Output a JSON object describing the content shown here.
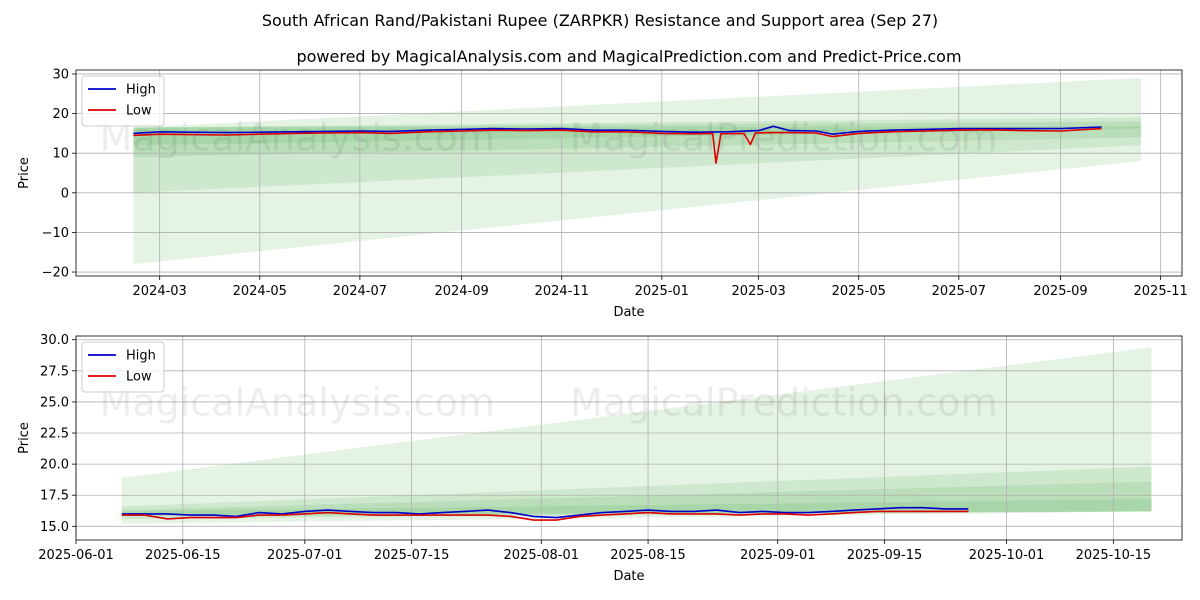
{
  "title": "South African Rand/Pakistani Rupee (ZARPKR) Resistance and Support area (Sep 27)",
  "subtitle": "powered by MagicalAnalysis.com and MagicalPrediction.com and Predict-Price.com",
  "watermarks": [
    "MagicalAnalysis.com",
    "MagicalPrediction.com"
  ],
  "colors": {
    "high": "#0000cc",
    "low": "#dd0000",
    "band": "#2ca02c"
  },
  "chart_data": [
    {
      "type": "line",
      "xlabel": "Date",
      "ylabel": "Price",
      "xlim": [
        "2024-01-10",
        "2025-11-14"
      ],
      "ylim": [
        -21,
        31
      ],
      "xticks": [
        "2024-03",
        "2024-05",
        "2024-07",
        "2024-09",
        "2024-11",
        "2025-01",
        "2025-03",
        "2025-05",
        "2025-07",
        "2025-09",
        "2025-11"
      ],
      "xtick_dates": [
        "2024-03-01",
        "2024-05-01",
        "2024-07-01",
        "2024-09-01",
        "2024-11-01",
        "2025-01-01",
        "2025-03-01",
        "2025-05-01",
        "2025-07-01",
        "2025-09-01",
        "2025-11-01"
      ],
      "yticks": [
        -20,
        -10,
        0,
        10,
        20,
        30
      ],
      "grid": true,
      "legend": {
        "position": "upper-left",
        "entries": [
          "High",
          "Low"
        ]
      },
      "series": [
        {
          "name": "High",
          "x": [
            "2024-02-14",
            "2024-03-01",
            "2024-03-20",
            "2024-04-10",
            "2024-05-01",
            "2024-05-20",
            "2024-06-10",
            "2024-07-01",
            "2024-07-20",
            "2024-08-10",
            "2024-09-01",
            "2024-09-20",
            "2024-10-10",
            "2024-11-01",
            "2024-11-20",
            "2024-12-10",
            "2025-01-01",
            "2025-01-20",
            "2025-02-10",
            "2025-03-01",
            "2025-03-10",
            "2025-03-20",
            "2025-04-05",
            "2025-04-15",
            "2025-05-01",
            "2025-05-20",
            "2025-06-10",
            "2025-07-01",
            "2025-07-20",
            "2025-08-10",
            "2025-09-01",
            "2025-09-26"
          ],
          "values": [
            15.0,
            15.4,
            15.3,
            15.2,
            15.3,
            15.4,
            15.5,
            15.6,
            15.5,
            15.8,
            16.0,
            16.2,
            16.1,
            16.2,
            15.8,
            15.8,
            15.5,
            15.3,
            15.4,
            15.7,
            16.8,
            15.7,
            15.6,
            14.8,
            15.5,
            15.8,
            16.0,
            16.2,
            16.2,
            16.2,
            16.2,
            16.6
          ]
        },
        {
          "name": "Low",
          "x": [
            "2024-02-14",
            "2024-03-01",
            "2024-03-20",
            "2024-04-10",
            "2024-05-01",
            "2024-05-20",
            "2024-06-10",
            "2024-07-01",
            "2024-07-20",
            "2024-08-10",
            "2024-09-01",
            "2024-09-20",
            "2024-10-10",
            "2024-11-01",
            "2024-11-20",
            "2024-12-10",
            "2025-01-01",
            "2025-01-20",
            "2025-02-01",
            "2025-02-03",
            "2025-02-06",
            "2025-02-20",
            "2025-02-24",
            "2025-02-27",
            "2025-03-10",
            "2025-03-20",
            "2025-04-05",
            "2025-04-15",
            "2025-05-01",
            "2025-05-20",
            "2025-06-10",
            "2025-07-01",
            "2025-07-20",
            "2025-08-10",
            "2025-09-01",
            "2025-09-26"
          ],
          "values": [
            14.5,
            14.8,
            14.7,
            14.6,
            14.8,
            15.0,
            15.1,
            15.2,
            15.0,
            15.4,
            15.6,
            15.8,
            15.7,
            15.8,
            15.4,
            15.4,
            15.0,
            14.9,
            15.0,
            7.5,
            14.9,
            15.0,
            12.2,
            15.1,
            15.2,
            15.2,
            15.1,
            14.2,
            15.0,
            15.4,
            15.6,
            15.8,
            15.9,
            15.7,
            15.6,
            16.2
          ]
        }
      ],
      "bands": {
        "start": "2024-02-14",
        "end": "2025-10-20",
        "ranges": [
          {
            "start": [
              -18,
              16.5
            ],
            "end": [
              8,
              29
            ]
          },
          {
            "start": [
              0,
              16.5
            ],
            "end": [
              12,
              19
            ]
          },
          {
            "start": [
              9,
              16.5
            ],
            "end": [
              14,
              18
            ]
          },
          {
            "start": [
              12,
              16.5
            ],
            "end": [
              16.2,
              16.8
            ]
          }
        ]
      }
    },
    {
      "type": "line",
      "xlabel": "Date",
      "ylabel": "Price",
      "xlim": [
        "2025-06-01",
        "2025-10-24"
      ],
      "ylim": [
        13.9,
        30.3
      ],
      "xticks": [
        "2025-06-01",
        "2025-06-15",
        "2025-07-01",
        "2025-07-15",
        "2025-08-01",
        "2025-08-15",
        "2025-09-01",
        "2025-09-15",
        "2025-10-01",
        "2025-10-15"
      ],
      "yticks": [
        15.0,
        17.5,
        20.0,
        22.5,
        25.0,
        27.5,
        30.0
      ],
      "grid": true,
      "legend": {
        "position": "upper-left",
        "entries": [
          "High",
          "Low"
        ]
      },
      "series": [
        {
          "name": "High",
          "x": [
            "2025-06-07",
            "2025-06-10",
            "2025-06-13",
            "2025-06-16",
            "2025-06-19",
            "2025-06-22",
            "2025-06-25",
            "2025-06-28",
            "2025-07-01",
            "2025-07-04",
            "2025-07-07",
            "2025-07-10",
            "2025-07-13",
            "2025-07-16",
            "2025-07-19",
            "2025-07-22",
            "2025-07-25",
            "2025-07-28",
            "2025-07-31",
            "2025-08-03",
            "2025-08-06",
            "2025-08-09",
            "2025-08-12",
            "2025-08-15",
            "2025-08-18",
            "2025-08-21",
            "2025-08-24",
            "2025-08-27",
            "2025-08-30",
            "2025-09-02",
            "2025-09-05",
            "2025-09-08",
            "2025-09-11",
            "2025-09-14",
            "2025-09-17",
            "2025-09-20",
            "2025-09-23",
            "2025-09-26"
          ],
          "values": [
            16.0,
            16.0,
            16.0,
            15.9,
            15.9,
            15.8,
            16.1,
            16.0,
            16.2,
            16.3,
            16.2,
            16.1,
            16.1,
            16.0,
            16.1,
            16.2,
            16.3,
            16.1,
            15.8,
            15.7,
            15.9,
            16.1,
            16.2,
            16.3,
            16.2,
            16.2,
            16.3,
            16.1,
            16.2,
            16.1,
            16.1,
            16.2,
            16.3,
            16.4,
            16.5,
            16.5,
            16.4,
            16.4
          ]
        },
        {
          "name": "Low",
          "x": [
            "2025-06-07",
            "2025-06-10",
            "2025-06-13",
            "2025-06-16",
            "2025-06-19",
            "2025-06-22",
            "2025-06-25",
            "2025-06-28",
            "2025-07-01",
            "2025-07-04",
            "2025-07-07",
            "2025-07-10",
            "2025-07-13",
            "2025-07-16",
            "2025-07-19",
            "2025-07-22",
            "2025-07-25",
            "2025-07-28",
            "2025-07-31",
            "2025-08-03",
            "2025-08-06",
            "2025-08-09",
            "2025-08-12",
            "2025-08-15",
            "2025-08-18",
            "2025-08-21",
            "2025-08-24",
            "2025-08-27",
            "2025-08-30",
            "2025-09-02",
            "2025-09-05",
            "2025-09-08",
            "2025-09-11",
            "2025-09-14",
            "2025-09-17",
            "2025-09-20",
            "2025-09-23",
            "2025-09-26"
          ],
          "values": [
            15.9,
            15.9,
            15.6,
            15.7,
            15.7,
            15.7,
            15.9,
            15.9,
            16.0,
            16.1,
            16.0,
            15.9,
            15.9,
            15.9,
            15.9,
            15.9,
            15.9,
            15.8,
            15.5,
            15.5,
            15.8,
            15.9,
            16.0,
            16.1,
            16.0,
            16.0,
            16.0,
            15.9,
            16.0,
            16.0,
            15.9,
            16.0,
            16.1,
            16.2,
            16.2,
            16.2,
            16.2,
            16.2
          ]
        }
      ],
      "bands": {
        "start": "2025-06-07",
        "end": "2025-10-20",
        "ranges": [
          {
            "start": [
              15.2,
              18.9
            ],
            "end": [
              16.2,
              29.4
            ]
          },
          {
            "start": [
              15.6,
              16.6
            ],
            "end": [
              16.2,
              19.8
            ]
          },
          {
            "start": [
              15.8,
              16.3
            ],
            "end": [
              16.2,
              18.6
            ]
          },
          {
            "start": [
              15.9,
              16.2
            ],
            "end": [
              16.2,
              17.2
            ]
          }
        ]
      }
    }
  ]
}
